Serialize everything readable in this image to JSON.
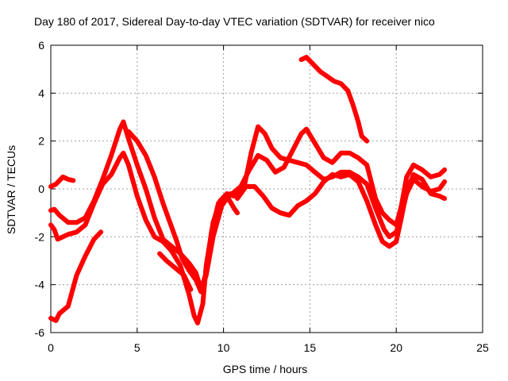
{
  "chart_data": {
    "type": "line",
    "title": "Day 180 of 2017, Sidereal Day-to-day VTEC variation (SDTVAR) for receiver nico",
    "xlabel": "GPS time / hours",
    "ylabel": "SDTVAR / TECUs",
    "xlim": [
      0,
      25
    ],
    "ylim": [
      -6,
      6
    ],
    "xticks": [
      "0",
      "5",
      "10",
      "15",
      "20",
      "25"
    ],
    "yticks": [
      "-6",
      "-4",
      "-2",
      "0",
      "2",
      "4",
      "6"
    ],
    "grid": true,
    "series_color": "#ff0000",
    "series": [
      {
        "points": [
          [
            0,
            0.1
          ],
          [
            0.3,
            0.2
          ],
          [
            0.7,
            0.5
          ],
          [
            1.0,
            0.4
          ],
          [
            1.3,
            0.35
          ]
        ]
      },
      {
        "points": [
          [
            0,
            -5.4
          ],
          [
            0.3,
            -5.5
          ],
          [
            0.5,
            -5.2
          ],
          [
            1.0,
            -4.9
          ],
          [
            1.5,
            -3.6
          ],
          [
            2.0,
            -2.8
          ],
          [
            2.5,
            -2.1
          ],
          [
            2.9,
            -1.8
          ]
        ]
      },
      {
        "points": [
          [
            0,
            -0.9
          ],
          [
            0.2,
            -0.85
          ],
          [
            0.5,
            -1.1
          ],
          [
            1.0,
            -1.4
          ],
          [
            1.5,
            -1.4
          ],
          [
            2.0,
            -1.2
          ],
          [
            2.5,
            -0.5
          ],
          [
            3.0,
            0.4
          ],
          [
            3.5,
            1.4
          ],
          [
            4.0,
            2.5
          ],
          [
            4.2,
            2.8
          ],
          [
            4.5,
            2.1
          ],
          [
            5.0,
            1.0
          ],
          [
            5.5,
            0.0
          ],
          [
            6.0,
            -1.2
          ],
          [
            6.5,
            -2.1
          ],
          [
            7.0,
            -2.4
          ],
          [
            7.5,
            -2.7
          ],
          [
            8.0,
            -3.1
          ],
          [
            8.4,
            -3.5
          ],
          [
            8.7,
            -4.2
          ],
          [
            9.0,
            -3.5
          ],
          [
            9.3,
            -1.8
          ],
          [
            9.7,
            -0.6
          ],
          [
            10.2,
            -0.3
          ],
          [
            10.6,
            -0.8
          ],
          [
            10.8,
            -1.0
          ]
        ]
      },
      {
        "points": [
          [
            0,
            -1.5
          ],
          [
            0.2,
            -1.7
          ],
          [
            0.4,
            -2.1
          ],
          [
            1.0,
            -1.9
          ],
          [
            1.5,
            -1.8
          ],
          [
            2.0,
            -1.5
          ],
          [
            2.5,
            -0.6
          ],
          [
            3.0,
            0.2
          ],
          [
            3.5,
            0.6
          ],
          [
            4.0,
            1.3
          ],
          [
            4.2,
            1.5
          ],
          [
            4.5,
            1.0
          ],
          [
            5.0,
            -0.3
          ],
          [
            5.5,
            -1.3
          ],
          [
            6.0,
            -2.0
          ],
          [
            6.5,
            -2.2
          ],
          [
            7.0,
            -2.6
          ],
          [
            7.5,
            -3.2
          ],
          [
            8.0,
            -4.4
          ],
          [
            8.3,
            -5.3
          ],
          [
            8.5,
            -5.6
          ],
          [
            8.8,
            -4.8
          ],
          [
            9.0,
            -3.2
          ],
          [
            9.4,
            -1.4
          ],
          [
            9.8,
            -0.5
          ],
          [
            10.2,
            -0.2
          ],
          [
            10.6,
            -0.3
          ]
        ]
      },
      {
        "points": [
          [
            4.5,
            2.4
          ],
          [
            5.0,
            2.0
          ],
          [
            5.5,
            1.4
          ],
          [
            6.0,
            0.5
          ],
          [
            6.5,
            -0.6
          ],
          [
            7.0,
            -1.6
          ],
          [
            7.3,
            -2.2
          ],
          [
            7.6,
            -2.9
          ],
          [
            8.0,
            -3.4
          ],
          [
            8.4,
            -3.8
          ],
          [
            8.7,
            -4.3
          ],
          [
            9.0,
            -3.6
          ],
          [
            9.4,
            -2.0
          ],
          [
            9.9,
            -0.7
          ],
          [
            10.4,
            -0.2
          ],
          [
            10.8,
            -0.3
          ],
          [
            11.2,
            0.1
          ],
          [
            11.6,
            1.5
          ],
          [
            12.0,
            2.6
          ],
          [
            12.4,
            2.3
          ],
          [
            12.8,
            1.7
          ],
          [
            13.3,
            1.3
          ],
          [
            13.8,
            1.2
          ],
          [
            14.3,
            1.1
          ],
          [
            14.8,
            1.0
          ],
          [
            15.3,
            0.7
          ],
          [
            15.8,
            0.4
          ],
          [
            16.3,
            0.5
          ],
          [
            16.8,
            0.7
          ],
          [
            17.3,
            0.7
          ],
          [
            17.8,
            0.5
          ],
          [
            18.3,
            0.2
          ],
          [
            18.8,
            -0.8
          ],
          [
            19.3,
            -1.7
          ],
          [
            19.6,
            -2.0
          ],
          [
            20.0,
            -1.8
          ],
          [
            20.3,
            -1.1
          ],
          [
            20.6,
            -0.2
          ],
          [
            21.0,
            0.4
          ],
          [
            21.5,
            0.1
          ],
          [
            22.0,
            -0.1
          ],
          [
            22.5,
            0.0
          ],
          [
            22.8,
            0.3
          ]
        ]
      },
      {
        "points": [
          [
            6.3,
            -2.7
          ],
          [
            6.7,
            -3.0
          ],
          [
            7.2,
            -3.3
          ],
          [
            7.7,
            -3.6
          ],
          [
            8.1,
            -4.2
          ]
        ]
      },
      {
        "points": [
          [
            10.0,
            -0.5
          ],
          [
            10.5,
            -0.2
          ],
          [
            11.0,
            0.1
          ],
          [
            11.5,
            0.8
          ],
          [
            12.0,
            1.4
          ],
          [
            12.5,
            1.2
          ],
          [
            13.0,
            0.7
          ],
          [
            13.5,
            0.9
          ],
          [
            14.0,
            1.6
          ],
          [
            14.5,
            2.3
          ],
          [
            14.8,
            2.5
          ],
          [
            15.3,
            1.9
          ],
          [
            15.8,
            1.3
          ],
          [
            16.3,
            1.1
          ],
          [
            16.8,
            1.5
          ],
          [
            17.3,
            1.5
          ],
          [
            17.8,
            1.3
          ],
          [
            18.3,
            1.0
          ],
          [
            18.8,
            -0.4
          ],
          [
            19.2,
            -1.0
          ],
          [
            19.6,
            -1.3
          ],
          [
            20.0,
            -1.5
          ],
          [
            20.3,
            -0.7
          ],
          [
            20.6,
            0.5
          ],
          [
            21.0,
            1.0
          ],
          [
            21.5,
            0.8
          ],
          [
            22.0,
            0.5
          ],
          [
            22.5,
            0.6
          ],
          [
            22.8,
            0.8
          ]
        ]
      },
      {
        "points": [
          [
            10.8,
            -0.4
          ],
          [
            11.3,
            0.1
          ],
          [
            11.8,
            0.1
          ],
          [
            12.3,
            -0.3
          ],
          [
            12.8,
            -0.8
          ],
          [
            13.3,
            -1.0
          ],
          [
            13.8,
            -1.1
          ],
          [
            14.3,
            -0.7
          ],
          [
            14.8,
            -0.5
          ],
          [
            15.3,
            -0.2
          ],
          [
            15.8,
            0.3
          ],
          [
            16.3,
            0.6
          ],
          [
            16.8,
            0.5
          ],
          [
            17.3,
            0.6
          ],
          [
            17.8,
            0.3
          ],
          [
            18.3,
            -0.5
          ],
          [
            18.8,
            -1.5
          ],
          [
            19.2,
            -2.2
          ],
          [
            19.6,
            -2.4
          ],
          [
            20.0,
            -2.2
          ],
          [
            20.3,
            -1.2
          ],
          [
            20.6,
            -0.1
          ],
          [
            21.0,
            0.6
          ],
          [
            21.5,
            0.4
          ],
          [
            22.0,
            -0.2
          ],
          [
            22.5,
            -0.3
          ],
          [
            22.8,
            -0.4
          ]
        ]
      },
      {
        "points": [
          [
            14.5,
            5.4
          ],
          [
            14.8,
            5.5
          ],
          [
            15.2,
            5.2
          ],
          [
            15.6,
            4.9
          ],
          [
            16.0,
            4.7
          ],
          [
            16.4,
            4.5
          ],
          [
            16.8,
            4.4
          ],
          [
            17.2,
            4.1
          ],
          [
            17.5,
            3.5
          ],
          [
            17.8,
            2.8
          ],
          [
            18.0,
            2.2
          ],
          [
            18.3,
            2.0
          ]
        ]
      }
    ]
  }
}
